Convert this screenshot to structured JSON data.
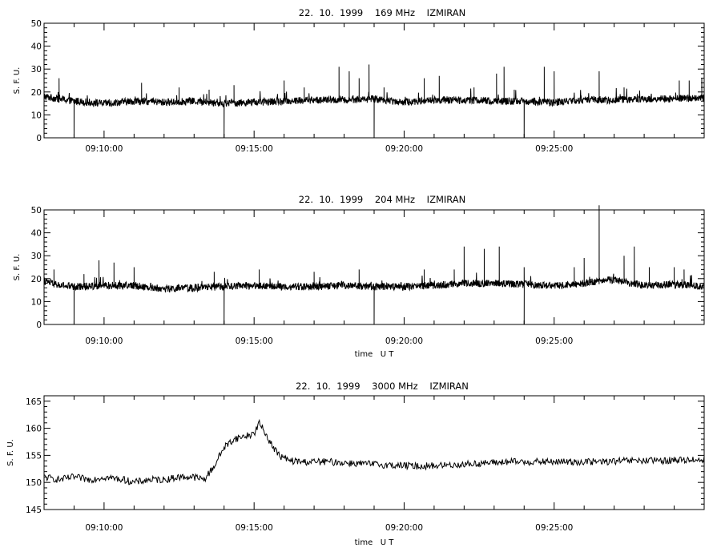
{
  "chart_data": [
    {
      "type": "line",
      "title": "22.  10.  1999    169 MHz    IZMIRAN",
      "xlabel": "",
      "ylabel": "S. F. U.",
      "xlim": [
        "09:08:00",
        "09:30:00"
      ],
      "ylim": [
        0,
        50
      ],
      "yticks": [
        0,
        10,
        20,
        30,
        40,
        50
      ],
      "xticks": [
        "09:10:00",
        "09:15:00",
        "09:20:00",
        "09:25:00"
      ],
      "grid": false,
      "series": [
        {
          "baseline": [
            [
              "09:08:00",
              18
            ],
            [
              "09:08:30",
              17
            ],
            [
              "09:09:00",
              16
            ],
            [
              "09:09:30",
              15.5
            ],
            [
              "09:10:00",
              15
            ],
            [
              "09:11:00",
              16
            ],
            [
              "09:12:00",
              15.5
            ],
            [
              "09:13:00",
              16
            ],
            [
              "09:14:00",
              15
            ],
            [
              "09:15:00",
              15.5
            ],
            [
              "09:16:00",
              16
            ],
            [
              "09:17:00",
              16.5
            ],
            [
              "09:18:00",
              16.5
            ],
            [
              "09:19:00",
              17
            ],
            [
              "09:20:00",
              15.5
            ],
            [
              "09:21:00",
              16.5
            ],
            [
              "09:22:00",
              16.5
            ],
            [
              "09:23:00",
              16
            ],
            [
              "09:24:00",
              16
            ],
            [
              "09:25:00",
              15.5
            ],
            [
              "09:26:00",
              16.5
            ],
            [
              "09:27:00",
              16.5
            ],
            [
              "09:28:00",
              17
            ],
            [
              "09:29:00",
              17
            ],
            [
              "09:30:00",
              17.5
            ]
          ],
          "peaks": [
            [
              "09:08:30",
              26
            ],
            [
              "09:11:15",
              24
            ],
            [
              "09:12:30",
              22
            ],
            [
              "09:13:30",
              21
            ],
            [
              "09:14:20",
              23
            ],
            [
              "09:16:00",
              25
            ],
            [
              "09:16:40",
              22
            ],
            [
              "09:17:50",
              31
            ],
            [
              "09:18:10",
              29
            ],
            [
              "09:18:30",
              26
            ],
            [
              "09:18:50",
              32
            ],
            [
              "09:19:20",
              22
            ],
            [
              "09:20:40",
              26
            ],
            [
              "09:21:10",
              27
            ],
            [
              "09:22:20",
              22
            ],
            [
              "09:23:05",
              28
            ],
            [
              "09:23:20",
              31
            ],
            [
              "09:23:40",
              21
            ],
            [
              "09:24:40",
              31
            ],
            [
              "09:25:00",
              29
            ],
            [
              "09:26:30",
              29
            ],
            [
              "09:27:20",
              22
            ],
            [
              "09:29:10",
              25
            ],
            [
              "09:29:30",
              25
            ],
            [
              "09:29:55",
              26
            ]
          ],
          "dips": [
            [
              "09:09:00",
              0
            ],
            [
              "09:14:00",
              0
            ],
            [
              "09:19:00",
              0
            ],
            [
              "09:24:00",
              0
            ]
          ]
        }
      ]
    },
    {
      "type": "line",
      "title": "22.  10.  1999    204 MHz    IZMIRAN",
      "xlabel": "time   U T",
      "ylabel": "S. F. U.",
      "xlim": [
        "09:08:00",
        "09:30:00"
      ],
      "ylim": [
        0,
        50
      ],
      "yticks": [
        0,
        10,
        20,
        30,
        40,
        50
      ],
      "xticks": [
        "09:10:00",
        "09:15:00",
        "09:20:00",
        "09:25:00"
      ],
      "grid": false,
      "series": [
        {
          "baseline": [
            [
              "09:08:00",
              19
            ],
            [
              "09:08:30",
              17
            ],
            [
              "09:09:00",
              16.5
            ],
            [
              "09:10:00",
              17
            ],
            [
              "09:11:00",
              17
            ],
            [
              "09:12:00",
              15.5
            ],
            [
              "09:13:00",
              16
            ],
            [
              "09:14:00",
              16.5
            ],
            [
              "09:15:00",
              17
            ],
            [
              "09:16:00",
              16.5
            ],
            [
              "09:17:00",
              16.5
            ],
            [
              "09:18:00",
              17
            ],
            [
              "09:19:00",
              16.5
            ],
            [
              "09:20:00",
              16.5
            ],
            [
              "09:21:00",
              17
            ],
            [
              "09:22:00",
              18
            ],
            [
              "09:23:00",
              18
            ],
            [
              "09:24:00",
              17.5
            ],
            [
              "09:25:00",
              17
            ],
            [
              "09:26:00",
              18
            ],
            [
              "09:26:30",
              19
            ],
            [
              "09:27:00",
              19.5
            ],
            [
              "09:28:00",
              17
            ],
            [
              "09:29:00",
              17.5
            ],
            [
              "09:30:00",
              16.5
            ]
          ],
          "peaks": [
            [
              "09:08:20",
              24
            ],
            [
              "09:09:20",
              22
            ],
            [
              "09:09:50",
              28
            ],
            [
              "09:10:20",
              27
            ],
            [
              "09:11:00",
              25
            ],
            [
              "09:13:40",
              23
            ],
            [
              "09:15:10",
              24
            ],
            [
              "09:17:00",
              23
            ],
            [
              "09:18:30",
              24
            ],
            [
              "09:20:40",
              24
            ],
            [
              "09:21:40",
              24
            ],
            [
              "09:22:00",
              34
            ],
            [
              "09:22:40",
              33
            ],
            [
              "09:23:10",
              34
            ],
            [
              "09:24:00",
              25
            ],
            [
              "09:25:40",
              25
            ],
            [
              "09:26:00",
              29
            ],
            [
              "09:26:30",
              52
            ],
            [
              "09:27:20",
              30
            ],
            [
              "09:27:40",
              34
            ],
            [
              "09:28:10",
              25
            ],
            [
              "09:29:00",
              25
            ],
            [
              "09:29:20",
              24
            ]
          ],
          "dips": [
            [
              "09:09:00",
              0
            ],
            [
              "09:14:00",
              0
            ],
            [
              "09:19:00",
              0
            ],
            [
              "09:24:00",
              0
            ]
          ]
        }
      ]
    },
    {
      "type": "line",
      "title": "22.  10.  1999    3000 MHz    IZMIRAN",
      "xlabel": "time   U T",
      "ylabel": "S. F. U.",
      "xlim": [
        "09:08:00",
        "09:30:00"
      ],
      "ylim": [
        145,
        166
      ],
      "yticks": [
        145,
        150,
        155,
        160,
        165
      ],
      "xticks": [
        "09:10:00",
        "09:15:00",
        "09:20:00",
        "09:25:00"
      ],
      "grid": false,
      "series": [
        {
          "points": [
            [
              "09:08:00",
              151
            ],
            [
              "09:08:30",
              150.5
            ],
            [
              "09:09:00",
              151
            ],
            [
              "09:09:30",
              150.5
            ],
            [
              "09:10:00",
              151
            ],
            [
              "09:10:40",
              150.5
            ],
            [
              "09:11:00",
              150
            ],
            [
              "09:11:30",
              150.5
            ],
            [
              "09:12:00",
              150.5
            ],
            [
              "09:12:30",
              151
            ],
            [
              "09:13:00",
              151
            ],
            [
              "09:13:20",
              150.5
            ],
            [
              "09:13:40",
              153
            ],
            [
              "09:14:00",
              156.5
            ],
            [
              "09:14:20",
              158
            ],
            [
              "09:14:40",
              158.5
            ],
            [
              "09:15:00",
              159
            ],
            [
              "09:15:10",
              161
            ],
            [
              "09:15:20",
              159.5
            ],
            [
              "09:15:35",
              157
            ],
            [
              "09:15:50",
              155
            ],
            [
              "09:16:10",
              154
            ],
            [
              "09:16:40",
              153.8
            ],
            [
              "09:17:30",
              153.8
            ],
            [
              "09:18:30",
              153.5
            ],
            [
              "09:19:30",
              153.2
            ],
            [
              "09:20:30",
              153
            ],
            [
              "09:21:30",
              153.2
            ],
            [
              "09:22:30",
              153.5
            ],
            [
              "09:23:30",
              153.8
            ],
            [
              "09:24:30",
              153.8
            ],
            [
              "09:25:30",
              153.8
            ],
            [
              "09:26:30",
              153.8
            ],
            [
              "09:27:30",
              154
            ],
            [
              "09:28:30",
              154
            ],
            [
              "09:29:30",
              154.2
            ],
            [
              "09:30:00",
              154.2
            ]
          ]
        }
      ]
    }
  ]
}
